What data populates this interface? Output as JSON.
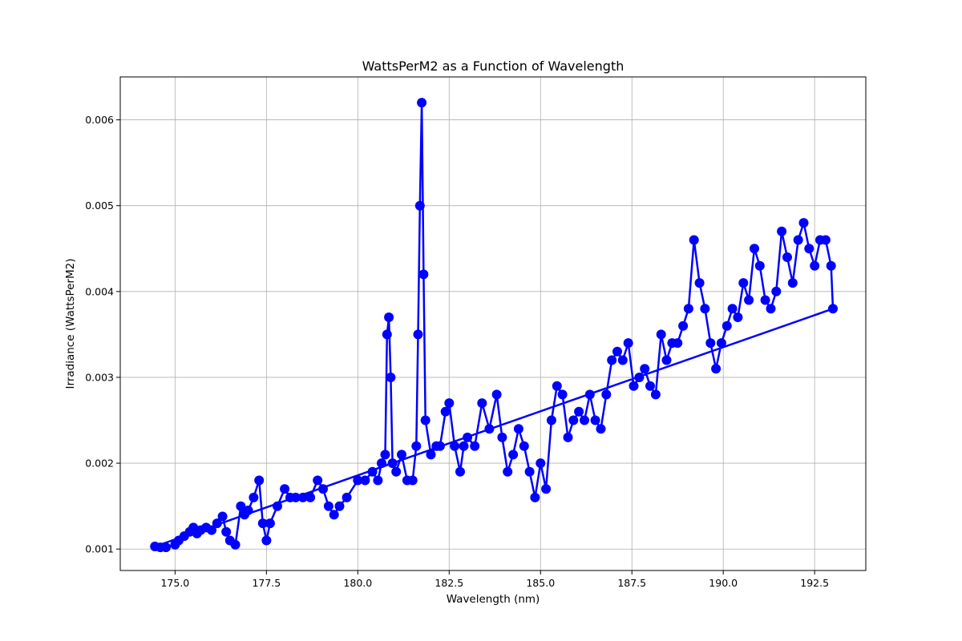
{
  "chart_data": {
    "type": "line",
    "title": "WattsPerM2 as a Function of Wavelength",
    "xlabel": "Wavelength (nm)",
    "ylabel": "Irradiance (WattsPerM2)",
    "xlim": [
      173.5,
      193.9
    ],
    "ylim": [
      0.00075,
      0.0065
    ],
    "grid": true,
    "line_color": "#0000ff",
    "marker": "circle",
    "x_ticks": [
      {
        "value": 175.0,
        "label": "175.0"
      },
      {
        "value": 177.5,
        "label": "177.5"
      },
      {
        "value": 180.0,
        "label": "180.0"
      },
      {
        "value": 182.5,
        "label": "182.5"
      },
      {
        "value": 185.0,
        "label": "185.0"
      },
      {
        "value": 187.5,
        "label": "187.5"
      },
      {
        "value": 190.0,
        "label": "190.0"
      },
      {
        "value": 192.5,
        "label": "192.5"
      }
    ],
    "y_ticks": [
      {
        "value": 0.001,
        "label": "0.001"
      },
      {
        "value": 0.002,
        "label": "0.002"
      },
      {
        "value": 0.003,
        "label": "0.003"
      },
      {
        "value": 0.004,
        "label": "0.004"
      },
      {
        "value": 0.005,
        "label": "0.005"
      },
      {
        "value": 0.006,
        "label": "0.006"
      }
    ],
    "series": [
      {
        "x": [
          174.45,
          174.6,
          174.75,
          175.0,
          175.1,
          175.25,
          175.4,
          175.5,
          175.6,
          175.7,
          175.85,
          176.0,
          176.15,
          176.3,
          176.4,
          176.5,
          176.65,
          176.8,
          176.9,
          177.0,
          177.15,
          177.3,
          177.4,
          177.5,
          177.6,
          177.8,
          178.0,
          178.15,
          178.3,
          178.5,
          178.7,
          178.9,
          179.05,
          179.2,
          179.35,
          179.5,
          179.7,
          180.0,
          180.2,
          180.4,
          180.55,
          180.65,
          180.75,
          180.8,
          180.85,
          180.9,
          180.95,
          181.05,
          181.2,
          181.35,
          181.5,
          181.6,
          181.65,
          181.7,
          181.75,
          181.8,
          181.85,
          182.0,
          182.15,
          182.25,
          182.4,
          182.5,
          182.65,
          182.8,
          182.9,
          183.0,
          183.2,
          183.4,
          183.6,
          183.8,
          183.95,
          184.1,
          184.25,
          184.4,
          184.55,
          184.7,
          184.85,
          185.0,
          185.15,
          185.3,
          185.45,
          185.6,
          185.75,
          185.9,
          186.05,
          186.2,
          186.35,
          186.5,
          186.65,
          186.8,
          186.95,
          187.1,
          187.25,
          187.4,
          187.55,
          187.7,
          187.85,
          188.0,
          188.15,
          188.3,
          188.45,
          188.6,
          188.75,
          188.9,
          189.05,
          189.2,
          189.35,
          189.5,
          189.65,
          189.8,
          189.95,
          190.1,
          190.25,
          190.4,
          190.55,
          190.7,
          190.85,
          191.0,
          191.15,
          191.3,
          191.45,
          191.6,
          191.75,
          191.9,
          192.05,
          192.2,
          192.35,
          192.5,
          192.65,
          192.8,
          192.95,
          193.0,
          174.45
        ],
        "y": [
          0.00103,
          0.00102,
          0.00102,
          0.00105,
          0.0011,
          0.00115,
          0.0012,
          0.00125,
          0.00118,
          0.00122,
          0.00125,
          0.00122,
          0.0013,
          0.00138,
          0.0012,
          0.0011,
          0.00105,
          0.0015,
          0.0014,
          0.00145,
          0.0016,
          0.0018,
          0.0013,
          0.0011,
          0.0013,
          0.0015,
          0.0017,
          0.0016,
          0.0016,
          0.0016,
          0.0016,
          0.0018,
          0.0017,
          0.0015,
          0.0014,
          0.0015,
          0.0016,
          0.0018,
          0.0018,
          0.0019,
          0.0018,
          0.002,
          0.0021,
          0.0035,
          0.0037,
          0.003,
          0.002,
          0.0019,
          0.0021,
          0.0018,
          0.0018,
          0.0022,
          0.0035,
          0.005,
          0.0062,
          0.0042,
          0.0025,
          0.0021,
          0.0022,
          0.0022,
          0.0026,
          0.0027,
          0.0022,
          0.0019,
          0.0022,
          0.0023,
          0.0022,
          0.0027,
          0.0024,
          0.0028,
          0.0023,
          0.0019,
          0.0021,
          0.0024,
          0.0022,
          0.0019,
          0.0016,
          0.002,
          0.0017,
          0.0025,
          0.0029,
          0.0028,
          0.0023,
          0.0025,
          0.0026,
          0.0025,
          0.0028,
          0.0025,
          0.0024,
          0.0028,
          0.0032,
          0.0033,
          0.0032,
          0.0034,
          0.0029,
          0.003,
          0.0031,
          0.0029,
          0.0028,
          0.0035,
          0.0032,
          0.0034,
          0.0034,
          0.0036,
          0.0038,
          0.0046,
          0.0041,
          0.0038,
          0.0034,
          0.0031,
          0.0034,
          0.0036,
          0.0038,
          0.0037,
          0.0041,
          0.0039,
          0.0045,
          0.0043,
          0.0039,
          0.0038,
          0.004,
          0.0047,
          0.0044,
          0.0041,
          0.0046,
          0.0048,
          0.0045,
          0.0043,
          0.0046,
          0.0046,
          0.0043,
          0.0038,
          0.00103
        ]
      }
    ]
  }
}
